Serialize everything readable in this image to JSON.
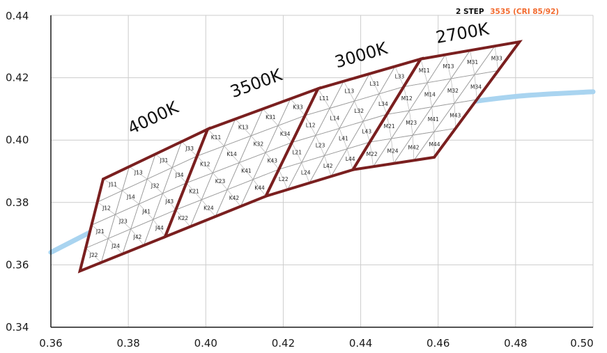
{
  "chart_data": {
    "type": "diagram",
    "xlim": [
      0.36,
      0.5
    ],
    "ylim": [
      0.34,
      0.44
    ],
    "x_ticks": [
      "0.36",
      "0.38",
      "0.40",
      "0.42",
      "0.44",
      "0.46",
      "0.48",
      "0.50"
    ],
    "y_ticks": [
      "0.34",
      "0.36",
      "0.38",
      "0.40",
      "0.42",
      "0.44"
    ],
    "grid": true,
    "header": {
      "label": "2 STEP",
      "code": "3535 (CRI 85/92)"
    },
    "colors": {
      "boundary": "#7a1f1f",
      "locus": "#a9d4f0",
      "grid": "#cccccc",
      "header_code": "#f26a2e"
    },
    "planckian_locus": [
      [
        0.36,
        0.364
      ],
      [
        0.38,
        0.3765
      ],
      [
        0.4,
        0.3875
      ],
      [
        0.42,
        0.397
      ],
      [
        0.44,
        0.4045
      ],
      [
        0.46,
        0.4105
      ],
      [
        0.48,
        0.414
      ],
      [
        0.5,
        0.4155
      ]
    ],
    "cct_groups": [
      {
        "label": "4000K",
        "label_pos": [
          0.387,
          0.4055
        ],
        "corners": [
          [
            0.3735,
            0.3875
          ],
          [
            0.4005,
            0.4035
          ],
          [
            0.3895,
            0.369
          ],
          [
            0.3675,
            0.358
          ]
        ],
        "bins": [
          [
            "J11",
            "J13",
            "J31",
            "J33"
          ],
          [
            "J12",
            "J14",
            "J32",
            "J34"
          ],
          [
            "J21",
            "J23",
            "J41",
            "J43"
          ],
          [
            "J22",
            "J24",
            "J42",
            "J44"
          ]
        ]
      },
      {
        "label": "3500K",
        "label_pos": [
          0.4135,
          0.4165
        ],
        "corners": [
          [
            0.4005,
            0.4035
          ],
          [
            0.429,
            0.4165
          ],
          [
            0.4155,
            0.382
          ],
          [
            0.3895,
            0.369
          ]
        ],
        "bins": [
          [
            "K11",
            "K13",
            "K31",
            "K33"
          ],
          [
            "K12",
            "K14",
            "K32",
            "K34"
          ],
          [
            "K21",
            "K23",
            "K41",
            "K43"
          ],
          [
            "K22",
            "K24",
            "K42",
            "K44"
          ]
        ]
      },
      {
        "label": "3000K",
        "label_pos": [
          0.4405,
          0.4255
        ],
        "corners": [
          [
            0.429,
            0.4165
          ],
          [
            0.4555,
            0.426
          ],
          [
            0.438,
            0.3905
          ],
          [
            0.4155,
            0.382
          ]
        ],
        "bins": [
          [
            "L11",
            "L13",
            "L31",
            "L33"
          ],
          [
            "L12",
            "L14",
            "L32",
            "L34"
          ],
          [
            "L21",
            "L23",
            "L41",
            "L43"
          ],
          [
            "L22",
            "L24",
            "L42",
            "L44"
          ]
        ]
      },
      {
        "label": "2700K",
        "label_pos": [
          0.4665,
          0.4325
        ],
        "corners": [
          [
            0.4555,
            0.426
          ],
          [
            0.481,
            0.4315
          ],
          [
            0.459,
            0.3945
          ],
          [
            0.438,
            0.3905
          ]
        ],
        "bins": [
          [
            "M11",
            "M13",
            "M31",
            "M33"
          ],
          [
            "M12",
            "M14",
            "M32",
            "M34"
          ],
          [
            "M21",
            "M23",
            "M41",
            "M43"
          ],
          [
            "M22",
            "M24",
            "M42",
            "M44"
          ]
        ]
      }
    ]
  }
}
